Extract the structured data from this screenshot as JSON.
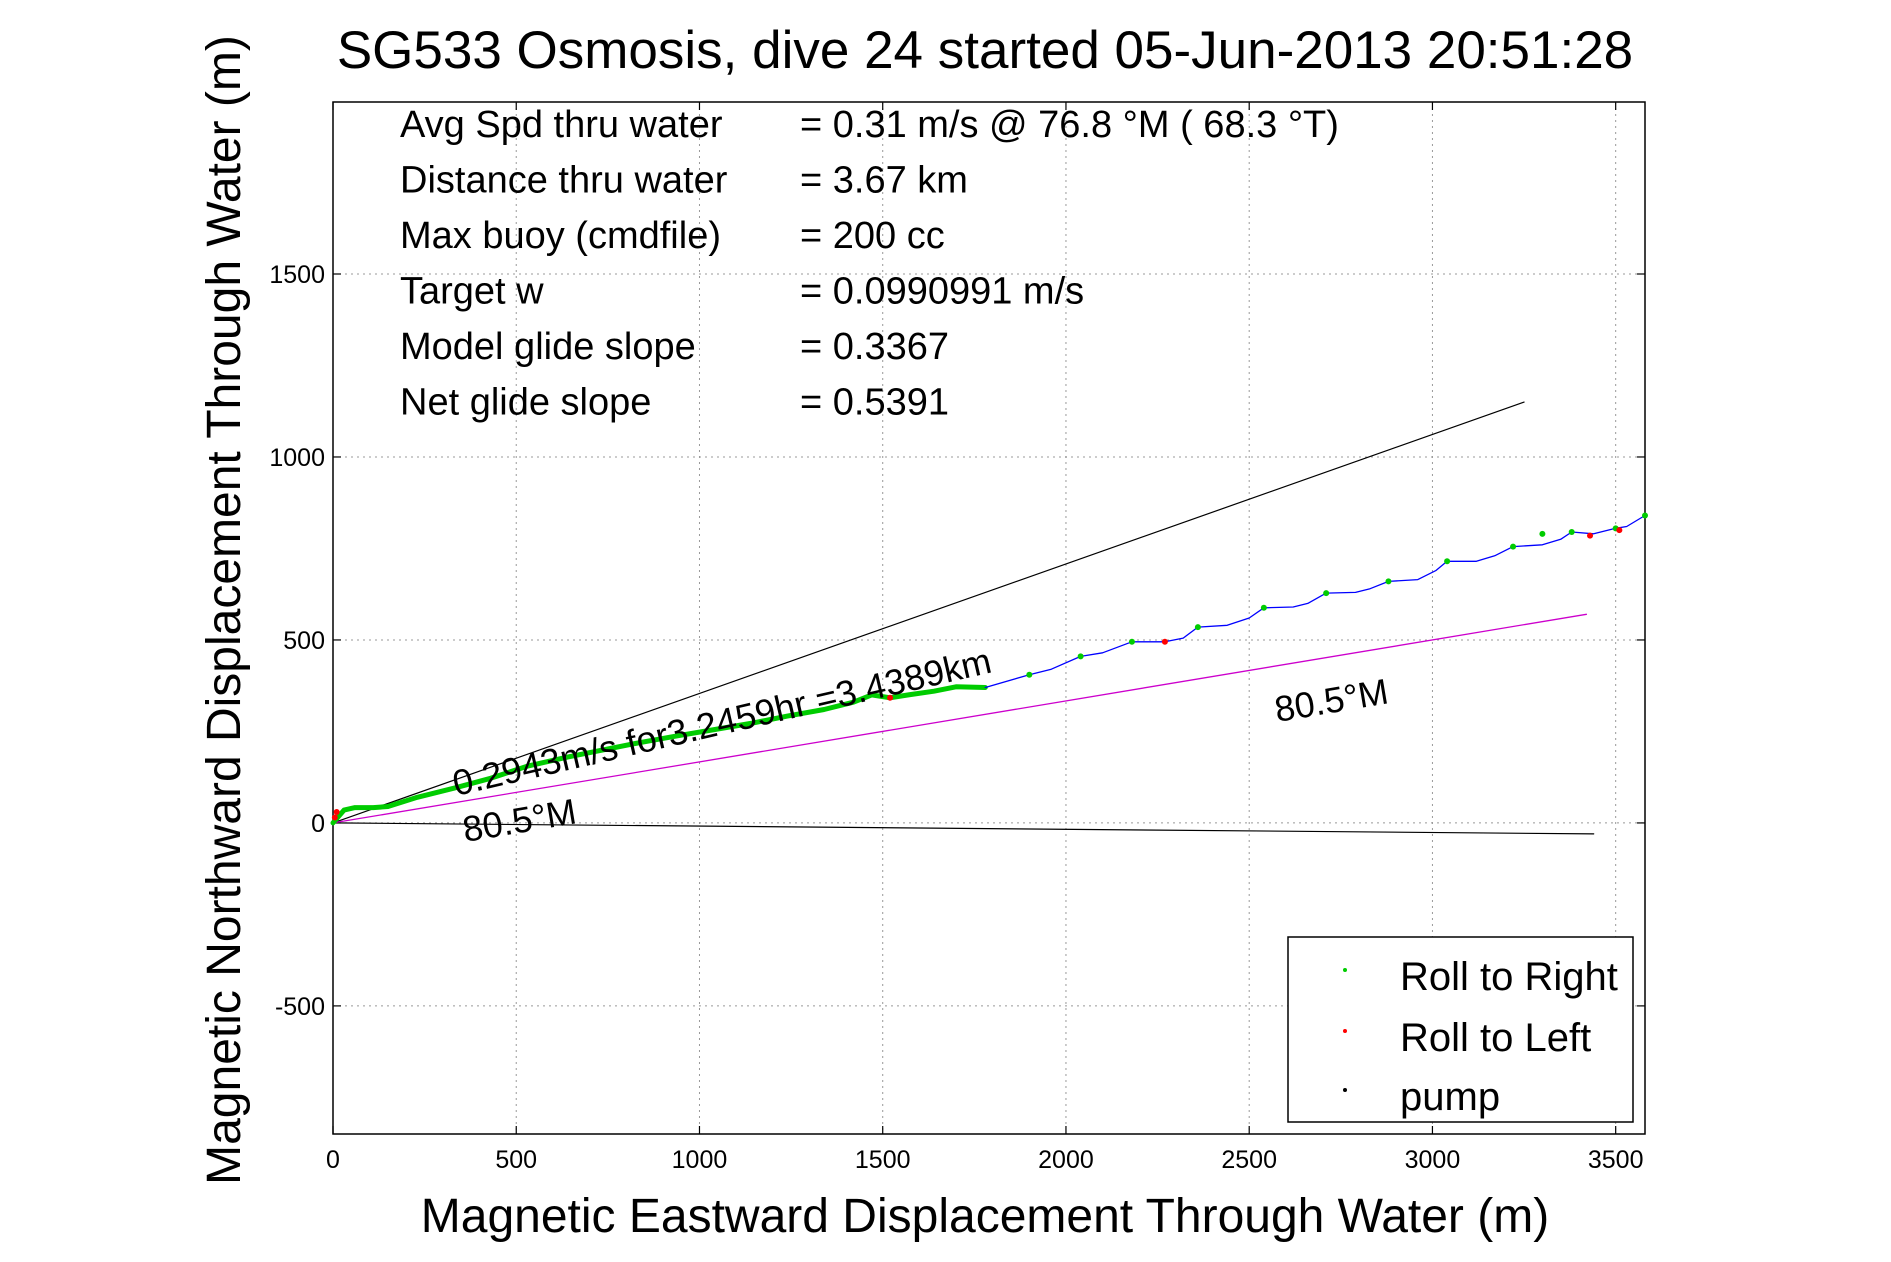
{
  "chart_data": {
    "type": "line",
    "title": "SG533 Osmosis, dive 24 started 05-Jun-2013 20:51:28",
    "xlabel": "Magnetic Eastward Displacement Through Water (m)",
    "ylabel": "Magnetic Northward Displacement Through Water (m)",
    "xlim": [
      0,
      3580
    ],
    "ylim": [
      -850,
      1970
    ],
    "xticks": [
      0,
      500,
      1000,
      1500,
      2000,
      2500,
      3000,
      3500
    ],
    "yticks": [
      -500,
      0,
      500,
      1000,
      1500
    ],
    "grid": true,
    "legend_position": "bottom-right",
    "colors": {
      "roll_right": "#00cc00",
      "roll_left": "#ff0000",
      "pump": "#000000",
      "track": "#0000ff",
      "model_line": "#000000",
      "heading_line": "#cc00cc",
      "grid": "#999999"
    },
    "legend": [
      {
        "label": "Roll to Right",
        "color": "#00cc00"
      },
      {
        "label": "Roll to Left",
        "color": "#ff0000"
      },
      {
        "label": "pump",
        "color": "#000000"
      }
    ],
    "stats": [
      {
        "label": "Avg Spd thru water",
        "value": "=  0.31 m/s @  76.8 °M ( 68.3 °T)"
      },
      {
        "label": "Distance thru water",
        "value": "=  3.67 km"
      },
      {
        "label": "Max buoy (cmdfile)",
        "value": "= 200 cc"
      },
      {
        "label": "Target w",
        "value": "= 0.0990991 m/s"
      },
      {
        "label": "Model glide slope",
        "value": "= 0.3367"
      },
      {
        "label": "Net glide slope",
        "value": "= 0.5391"
      }
    ],
    "annotations": {
      "track_label": "0.2943m/s for3.2459hr =3.4389km",
      "heading_label_near": "80.5°M",
      "heading_label_far": "80.5°M"
    },
    "series": [
      {
        "name": "Roll to Right",
        "x": [
          0,
          30,
          60,
          110,
          150,
          230,
          330,
          430,
          530,
          640,
          740,
          840,
          940,
          1040,
          1140,
          1240,
          1340,
          1420,
          1470,
          1520,
          1570,
          1640,
          1700,
          1780
        ],
        "y": [
          0,
          35,
          42,
          42,
          45,
          70,
          95,
          122,
          155,
          180,
          200,
          220,
          238,
          255,
          272,
          292,
          310,
          330,
          350,
          342,
          350,
          360,
          372,
          370
        ]
      },
      {
        "name": "track",
        "x": [
          1780,
          1900,
          1960,
          2040,
          2100,
          2180,
          2270,
          2320,
          2360,
          2440,
          2500,
          2540,
          2620,
          2660,
          2710,
          2790,
          2830,
          2880,
          2960,
          3010,
          3040,
          3120,
          3170,
          3220,
          3300,
          3350,
          3380,
          3440,
          3500,
          3530,
          3580
        ],
        "y": [
          370,
          405,
          420,
          455,
          465,
          495,
          495,
          505,
          535,
          540,
          560,
          588,
          590,
          600,
          628,
          630,
          640,
          660,
          665,
          690,
          715,
          715,
          730,
          755,
          760,
          775,
          795,
          790,
          805,
          810,
          840
        ]
      },
      {
        "name": "model glide slope line",
        "x": [
          0,
          3250
        ],
        "y": [
          0,
          1150
        ]
      },
      {
        "name": "heading line",
        "x": [
          0,
          3420
        ],
        "y": [
          0,
          570
        ]
      },
      {
        "name": "baseline",
        "x": [
          0,
          3440
        ],
        "y": [
          0,
          -30
        ]
      }
    ],
    "markers_right": {
      "x": [
        1900,
        2040,
        2180,
        2360,
        2540,
        2710,
        2880,
        3040,
        3220,
        3300,
        3380,
        3500,
        3580
      ],
      "y": [
        405,
        455,
        495,
        535,
        588,
        628,
        660,
        715,
        755,
        790,
        795,
        805,
        840
      ]
    },
    "markers_left": {
      "x": [
        5,
        10,
        1520,
        2270,
        3430,
        3510
      ],
      "y": [
        15,
        30,
        342,
        495,
        785,
        800
      ]
    }
  }
}
